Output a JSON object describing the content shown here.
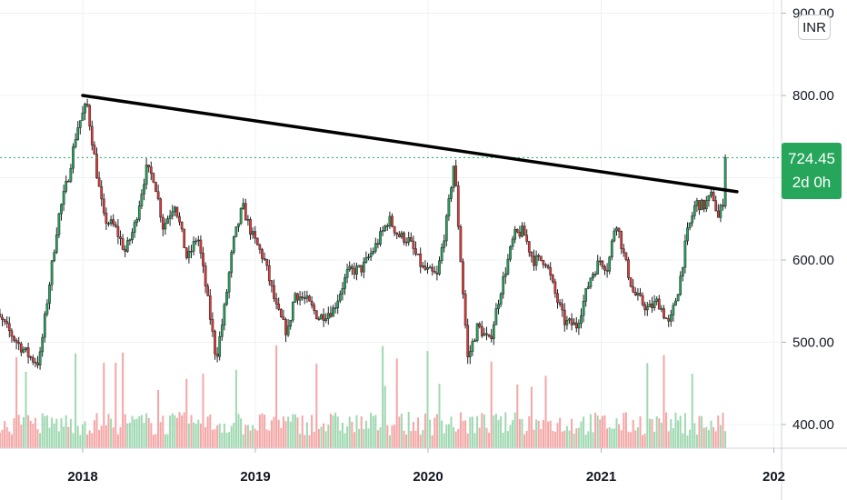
{
  "chart_data": {
    "type": "candlestick",
    "currency": "INR",
    "x_axis": {
      "tick_labels": [
        "2018",
        "2019",
        "2020",
        "2021",
        "202"
      ]
    },
    "y_axis": {
      "tick_labels": [
        "900.00",
        "800.00",
        "600.00",
        "500.00",
        "400.00"
      ],
      "range": [
        370,
        950
      ]
    },
    "last_price": {
      "value": "724.45",
      "countdown": "2d 0h"
    },
    "trendline": {
      "from": {
        "date": "2018-01-01",
        "price": 800
      },
      "to": {
        "date": "2021-10-15",
        "price": 683
      }
    },
    "price_anchors": [
      [
        "2017-06-15",
        540
      ],
      [
        "2017-07-15",
        525
      ],
      [
        "2017-08-15",
        500
      ],
      [
        "2017-09-15",
        480
      ],
      [
        "2017-10-01",
        475
      ],
      [
        "2017-10-20",
        560
      ],
      [
        "2017-11-10",
        650
      ],
      [
        "2017-12-01",
        700
      ],
      [
        "2017-12-20",
        760
      ],
      [
        "2018-01-10",
        790
      ],
      [
        "2018-02-01",
        700
      ],
      [
        "2018-02-15",
        650
      ],
      [
        "2018-03-10",
        640
      ],
      [
        "2018-04-01",
        610
      ],
      [
        "2018-04-20",
        640
      ],
      [
        "2018-05-15",
        710
      ],
      [
        "2018-06-01",
        700
      ],
      [
        "2018-06-20",
        640
      ],
      [
        "2018-07-15",
        670
      ],
      [
        "2018-08-10",
        600
      ],
      [
        "2018-09-01",
        630
      ],
      [
        "2018-09-20",
        560
      ],
      [
        "2018-10-10",
        480
      ],
      [
        "2018-10-25",
        530
      ],
      [
        "2018-11-15",
        620
      ],
      [
        "2018-12-05",
        665
      ],
      [
        "2018-12-25",
        630
      ],
      [
        "2019-01-20",
        600
      ],
      [
        "2019-02-15",
        540
      ],
      [
        "2019-03-10",
        510
      ],
      [
        "2019-03-25",
        560
      ],
      [
        "2019-04-20",
        550
      ],
      [
        "2019-05-15",
        530
      ],
      [
        "2019-06-15",
        540
      ],
      [
        "2019-07-15",
        585
      ],
      [
        "2019-08-15",
        590
      ],
      [
        "2019-09-15",
        620
      ],
      [
        "2019-10-10",
        650
      ],
      [
        "2019-10-30",
        630
      ],
      [
        "2019-11-20",
        625
      ],
      [
        "2019-12-20",
        590
      ],
      [
        "2020-01-20",
        580
      ],
      [
        "2020-02-10",
        650
      ],
      [
        "2020-02-25",
        720
      ],
      [
        "2020-03-10",
        600
      ],
      [
        "2020-03-25",
        480
      ],
      [
        "2020-04-15",
        520
      ],
      [
        "2020-05-10",
        500
      ],
      [
        "2020-06-01",
        560
      ],
      [
        "2020-07-01",
        630
      ],
      [
        "2020-07-20",
        635
      ],
      [
        "2020-08-10",
        600
      ],
      [
        "2020-09-05",
        600
      ],
      [
        "2020-09-25",
        560
      ],
      [
        "2020-10-15",
        525
      ],
      [
        "2020-11-10",
        520
      ],
      [
        "2020-12-10",
        580
      ],
      [
        "2020-12-30",
        600
      ],
      [
        "2021-01-15",
        590
      ],
      [
        "2021-02-01",
        650
      ],
      [
        "2021-02-20",
        600
      ],
      [
        "2021-03-10",
        560
      ],
      [
        "2021-04-10",
        540
      ],
      [
        "2021-05-01",
        550
      ],
      [
        "2021-05-25",
        520
      ],
      [
        "2021-06-15",
        570
      ],
      [
        "2021-07-01",
        630
      ],
      [
        "2021-07-20",
        670
      ],
      [
        "2021-08-05",
        665
      ],
      [
        "2021-08-25",
        680
      ],
      [
        "2021-09-05",
        650
      ],
      [
        "2021-09-15",
        670
      ],
      [
        "2021-09-25",
        724.45
      ]
    ]
  }
}
